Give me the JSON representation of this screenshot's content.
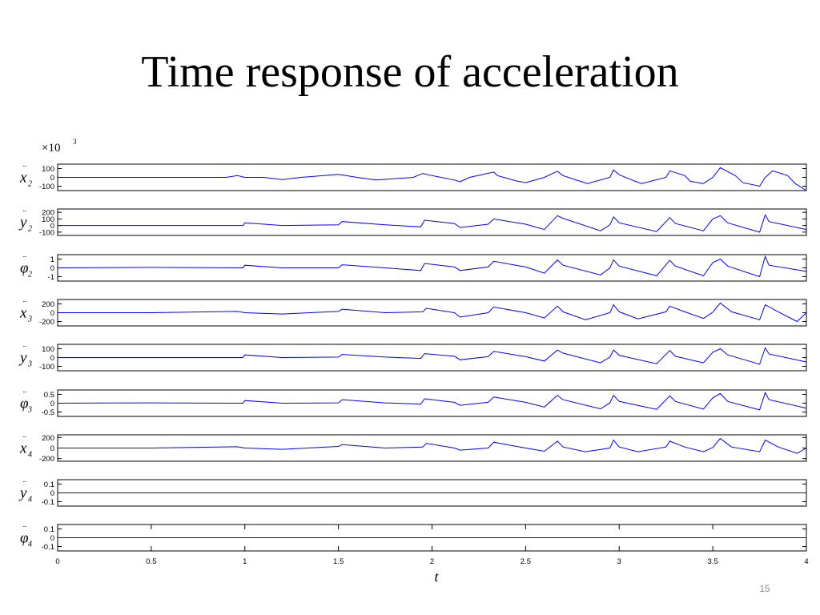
{
  "slide": {
    "title": "Time response of acceleration",
    "page_number": "15"
  },
  "figure": {
    "multiplier_label": "×10",
    "multiplier_exponent": "3",
    "x_axis_label": "t",
    "line_color": "#0000ff"
  },
  "chart_data": {
    "type": "line",
    "x_axis": {
      "label": "t",
      "range": [
        0,
        4
      ],
      "ticks": [
        "0",
        "0.5",
        "1",
        "1.5",
        "2",
        "2.5",
        "3",
        "3.5",
        "4"
      ]
    },
    "scale_note": "×10^3",
    "panels": [
      {
        "name": "ẍ2",
        "symbol": "x",
        "subscript": "2",
        "ylim": [
          -150,
          150
        ],
        "ticks": [
          "100",
          "0",
          "-100"
        ],
        "tick_values": [
          100,
          0,
          -100
        ],
        "x": [
          0,
          0.5,
          0.9,
          0.96,
          1.0,
          1.1,
          1.2,
          1.3,
          1.5,
          1.6,
          1.7,
          1.9,
          1.95,
          2.0,
          2.12,
          2.15,
          2.2,
          2.33,
          2.35,
          2.45,
          2.5,
          2.6,
          2.67,
          2.7,
          2.8,
          2.83,
          2.95,
          2.97,
          3.0,
          3.08,
          3.12,
          3.25,
          3.27,
          3.35,
          3.38,
          3.45,
          3.5,
          3.54,
          3.62,
          3.66,
          3.75,
          3.78,
          3.82,
          3.9,
          3.94,
          4.0
        ],
        "y": [
          0,
          0,
          0,
          20,
          0,
          0,
          -25,
          0,
          35,
          0,
          -30,
          0,
          45,
          20,
          -30,
          -50,
          0,
          60,
          20,
          -40,
          -60,
          0,
          70,
          20,
          -50,
          -70,
          0,
          85,
          30,
          -40,
          -70,
          0,
          75,
          20,
          -45,
          -70,
          0,
          110,
          20,
          -60,
          -100,
          0,
          75,
          20,
          -70,
          -150
        ]
      },
      {
        "name": "ÿ2",
        "symbol": "y",
        "subscript": "2",
        "ylim": [
          -150,
          250
        ],
        "ticks": [
          "200",
          "100",
          "0",
          "-100"
        ],
        "tick_values": [
          200,
          100,
          0,
          -100
        ],
        "x": [
          0,
          0.5,
          0.99,
          1.0,
          1.2,
          1.5,
          1.52,
          1.75,
          1.94,
          1.96,
          2.12,
          2.15,
          2.3,
          2.33,
          2.5,
          2.6,
          2.67,
          2.7,
          2.9,
          2.95,
          2.97,
          3.0,
          3.2,
          3.27,
          3.3,
          3.45,
          3.5,
          3.54,
          3.58,
          3.75,
          3.78,
          3.8,
          4.0
        ],
        "y": [
          0,
          0,
          0,
          40,
          0,
          10,
          60,
          10,
          -20,
          80,
          30,
          -30,
          20,
          100,
          20,
          -60,
          150,
          110,
          -80,
          10,
          130,
          40,
          -90,
          120,
          30,
          -80,
          100,
          150,
          40,
          -100,
          160,
          60,
          -60
        ]
      },
      {
        "name": "φ̈2",
        "symbol": "φ",
        "subscript": "2",
        "ylim": [
          -1.5,
          1.5
        ],
        "ticks": [
          "1",
          "0",
          "-1"
        ],
        "tick_values": [
          1,
          0,
          -1
        ],
        "x": [
          0,
          0.5,
          0.99,
          1.0,
          1.2,
          1.5,
          1.52,
          1.75,
          1.94,
          1.96,
          2.12,
          2.15,
          2.3,
          2.33,
          2.5,
          2.6,
          2.67,
          2.7,
          2.9,
          2.95,
          2.97,
          3.0,
          3.2,
          3.27,
          3.3,
          3.45,
          3.5,
          3.54,
          3.58,
          3.75,
          3.78,
          3.8,
          4.0
        ],
        "y": [
          0,
          0.05,
          0,
          0.3,
          0,
          0,
          0.35,
          0,
          -0.3,
          0.5,
          0.1,
          -0.3,
          0.1,
          0.75,
          0.1,
          -0.6,
          0.9,
          0.3,
          -0.8,
          0,
          0.9,
          0.2,
          -0.9,
          0.85,
          0.2,
          -0.9,
          0.6,
          1.0,
          0.2,
          -1.0,
          1.3,
          0.3,
          -0.4
        ]
      },
      {
        "name": "ẍ3",
        "symbol": "x",
        "subscript": "3",
        "ylim": [
          -300,
          300
        ],
        "ticks": [
          "200",
          "0",
          "-200"
        ],
        "tick_values": [
          200,
          0,
          -200
        ],
        "x": [
          0,
          0.5,
          0.96,
          1.0,
          1.2,
          1.5,
          1.52,
          1.75,
          1.95,
          1.97,
          2.12,
          2.15,
          2.3,
          2.33,
          2.5,
          2.6,
          2.67,
          2.7,
          2.82,
          2.95,
          2.97,
          3.0,
          3.1,
          3.25,
          3.27,
          3.35,
          3.45,
          3.5,
          3.54,
          3.6,
          3.75,
          3.78,
          3.85,
          3.95,
          4.0
        ],
        "y": [
          0,
          0,
          30,
          0,
          -30,
          30,
          80,
          0,
          20,
          100,
          0,
          -100,
          0,
          130,
          0,
          -120,
          150,
          20,
          -160,
          0,
          180,
          20,
          -140,
          20,
          150,
          20,
          -130,
          10,
          220,
          20,
          -160,
          180,
          20,
          -200,
          0
        ]
      },
      {
        "name": "ÿ3",
        "symbol": "y",
        "subscript": "3",
        "ylim": [
          -150,
          150
        ],
        "ticks": [
          "100",
          "0",
          "-100"
        ],
        "tick_values": [
          100,
          0,
          -100
        ],
        "x": [
          0,
          0.5,
          0.99,
          1.0,
          1.2,
          1.5,
          1.52,
          1.75,
          1.94,
          1.96,
          2.12,
          2.15,
          2.3,
          2.33,
          2.5,
          2.6,
          2.67,
          2.7,
          2.9,
          2.95,
          2.97,
          3.0,
          3.2,
          3.27,
          3.3,
          3.45,
          3.5,
          3.54,
          3.58,
          3.75,
          3.78,
          3.8,
          4.0
        ],
        "y": [
          0,
          0,
          0,
          30,
          0,
          5,
          35,
          5,
          -10,
          45,
          15,
          -25,
          10,
          70,
          10,
          -40,
          85,
          50,
          -60,
          5,
          85,
          25,
          -70,
          80,
          15,
          -60,
          60,
          100,
          30,
          -75,
          110,
          40,
          -50
        ]
      },
      {
        "name": "φ̈3",
        "symbol": "φ",
        "subscript": "3",
        "ylim": [
          -0.75,
          0.75
        ],
        "ticks": [
          "0.5",
          "0",
          "-0.5"
        ],
        "tick_values": [
          0.5,
          0,
          -0.5
        ],
        "x": [
          0,
          0.5,
          0.99,
          1.0,
          1.2,
          1.5,
          1.52,
          1.75,
          1.94,
          1.96,
          2.12,
          2.15,
          2.3,
          2.33,
          2.5,
          2.6,
          2.67,
          2.7,
          2.9,
          2.95,
          2.97,
          3.0,
          3.2,
          3.27,
          3.3,
          3.45,
          3.5,
          3.54,
          3.58,
          3.75,
          3.78,
          3.8,
          4.0
        ],
        "y": [
          0,
          0.02,
          0,
          0.15,
          0,
          0.02,
          0.2,
          0.02,
          -0.05,
          0.25,
          0.05,
          -0.12,
          0.05,
          0.35,
          0.05,
          -0.22,
          0.45,
          0.2,
          -0.32,
          0.02,
          0.45,
          0.1,
          -0.35,
          0.42,
          0.1,
          -0.33,
          0.3,
          0.55,
          0.1,
          -0.38,
          0.6,
          0.2,
          -0.28
        ]
      },
      {
        "name": "ẍ4",
        "symbol": "x",
        "subscript": "4",
        "ylim": [
          -250,
          250
        ],
        "ticks": [
          "200",
          "0",
          "-200"
        ],
        "tick_values": [
          200,
          0,
          -200
        ],
        "x": [
          0,
          0.5,
          0.96,
          1.0,
          1.2,
          1.5,
          1.52,
          1.75,
          1.95,
          1.97,
          2.12,
          2.15,
          2.3,
          2.33,
          2.5,
          2.6,
          2.67,
          2.7,
          2.82,
          2.95,
          2.97,
          3.0,
          3.1,
          3.25,
          3.27,
          3.35,
          3.45,
          3.5,
          3.54,
          3.6,
          3.75,
          3.78,
          3.85,
          3.95,
          4.0
        ],
        "y": [
          0,
          0,
          25,
          0,
          -25,
          30,
          65,
          0,
          20,
          90,
          0,
          -40,
          0,
          110,
          0,
          -60,
          130,
          20,
          -70,
          0,
          150,
          20,
          -70,
          20,
          130,
          20,
          -70,
          10,
          180,
          20,
          -70,
          150,
          20,
          -100,
          0
        ]
      },
      {
        "name": "ÿ4",
        "symbol": "y",
        "subscript": "4",
        "ylim": [
          -0.15,
          0.15
        ],
        "ticks": [
          "0.1",
          "0",
          "-0.1"
        ],
        "tick_values": [
          0.1,
          0,
          -0.1
        ],
        "x": [
          0,
          4
        ],
        "y": [
          0,
          0
        ]
      },
      {
        "name": "φ̈4",
        "symbol": "φ",
        "subscript": "4",
        "ylim": [
          -0.15,
          0.15
        ],
        "ticks": [
          "0.1",
          "0",
          "-0.1"
        ],
        "tick_values": [
          0.1,
          0,
          -0.1
        ],
        "x": [
          0,
          4
        ],
        "y": [
          0,
          0
        ]
      }
    ]
  }
}
